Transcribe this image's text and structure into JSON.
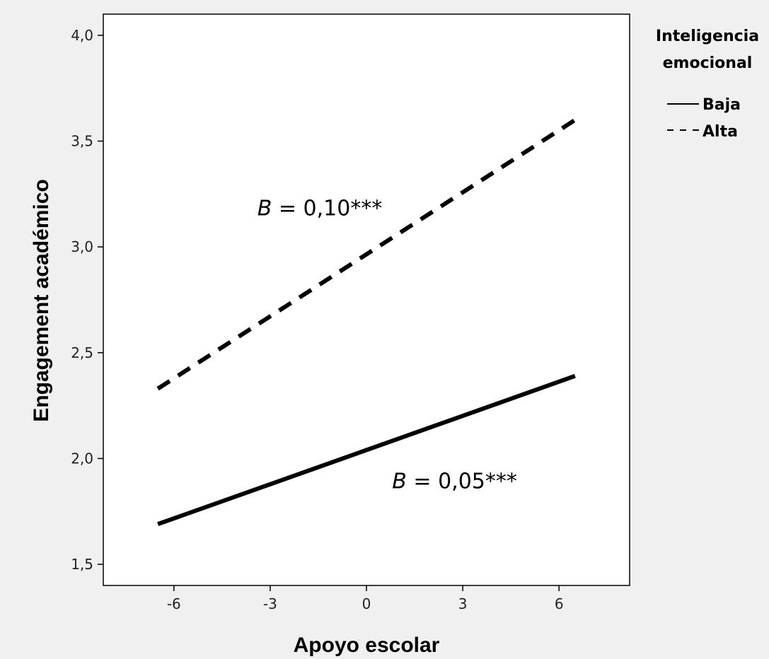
{
  "chart_data": {
    "type": "line",
    "title": "",
    "xlabel": "Apoyo escolar",
    "ylabel": "Engagement académico",
    "xlim": [
      -8.2,
      8.2
    ],
    "ylim": [
      1.4,
      4.1
    ],
    "x_ticks": [
      -6,
      -3,
      0,
      3,
      6
    ],
    "x_tick_labels": [
      "-6",
      "-3",
      "0",
      "3",
      "6"
    ],
    "y_ticks": [
      1.5,
      2.0,
      2.5,
      3.0,
      3.5,
      4.0
    ],
    "y_tick_labels": [
      "1,5",
      "2,0",
      "2,5",
      "3,0",
      "3,5",
      "4,0"
    ],
    "legend_title": [
      "Inteligencia",
      "emocional"
    ],
    "legend_position": "right",
    "grid": false,
    "series": [
      {
        "name": "Baja",
        "style": "solid",
        "x": [
          -6.5,
          6.5
        ],
        "y": [
          1.69,
          2.39
        ],
        "color": "#000000"
      },
      {
        "name": "Alta",
        "style": "dashed",
        "x": [
          -6.5,
          6.5
        ],
        "y": [
          2.33,
          3.6
        ],
        "color": "#000000"
      }
    ],
    "annotations": [
      {
        "text_italic": "B",
        "text": " = 0,10***",
        "x": -3.4,
        "y": 3.15
      },
      {
        "text_italic": "B",
        "text": " = 0,05***",
        "x": 0.8,
        "y": 1.86
      }
    ]
  }
}
